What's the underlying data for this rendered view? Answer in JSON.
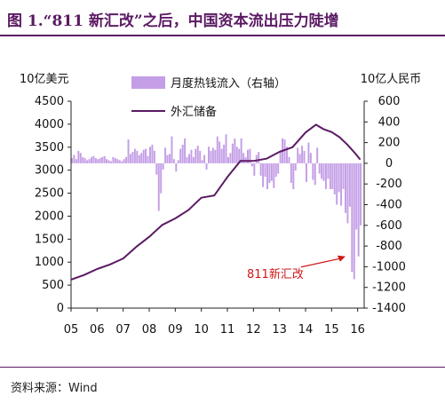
{
  "header": {
    "title": "图 1.“811 新汇改”之后，中国资本流出压力陡增"
  },
  "footer": {
    "source": "资料来源：Wind"
  },
  "colors": {
    "title": "#5b1a63",
    "bars": "#c49ee6",
    "line": "#5b1a63",
    "annotation": "#d01818"
  },
  "chart_data": {
    "type": "bar+line",
    "left_axis": {
      "unit_label": "10亿美元",
      "ylim": [
        0,
        4500
      ],
      "ticks": [
        0,
        500,
        1000,
        1500,
        2000,
        2500,
        3000,
        3500,
        4000,
        4500
      ]
    },
    "right_axis": {
      "unit_label": "10亿人民币",
      "ylim": [
        -1400,
        600
      ],
      "ticks": [
        -1400,
        -1200,
        -1000,
        -800,
        -600,
        -400,
        -200,
        0,
        200,
        400,
        600
      ]
    },
    "x_axis": {
      "ticks": [
        "05",
        "06",
        "07",
        "08",
        "09",
        "10",
        "11",
        "12",
        "13",
        "14",
        "15",
        "16"
      ],
      "range": [
        2005.0,
        2016.25
      ]
    },
    "legend": [
      {
        "name": "月度热钱流入（右轴）",
        "type": "bar"
      },
      {
        "name": "外汇储备",
        "type": "line"
      }
    ],
    "annotation": {
      "text": "811新汇改",
      "x": 2015.6,
      "y_right": -900
    },
    "series": [
      {
        "name": "外汇储备",
        "axis": "left",
        "points": [
          [
            2005.0,
            620
          ],
          [
            2005.5,
            720
          ],
          [
            2006.0,
            850
          ],
          [
            2006.5,
            950
          ],
          [
            2007.0,
            1080
          ],
          [
            2007.5,
            1330
          ],
          [
            2008.0,
            1550
          ],
          [
            2008.5,
            1810
          ],
          [
            2009.0,
            1950
          ],
          [
            2009.5,
            2130
          ],
          [
            2010.0,
            2400
          ],
          [
            2010.5,
            2450
          ],
          [
            2011.0,
            2850
          ],
          [
            2011.5,
            3200
          ],
          [
            2012.0,
            3200
          ],
          [
            2012.5,
            3250
          ],
          [
            2013.0,
            3400
          ],
          [
            2013.5,
            3500
          ],
          [
            2014.0,
            3820
          ],
          [
            2014.4,
            3990
          ],
          [
            2014.7,
            3890
          ],
          [
            2015.0,
            3830
          ],
          [
            2015.3,
            3720
          ],
          [
            2015.6,
            3560
          ],
          [
            2015.9,
            3370
          ],
          [
            2016.1,
            3230
          ]
        ]
      },
      {
        "name": "月度热钱流入（右轴）",
        "axis": "right",
        "monthly_start": 2005.0,
        "values": [
          50,
          80,
          40,
          120,
          100,
          60,
          50,
          30,
          40,
          60,
          70,
          50,
          40,
          50,
          60,
          70,
          40,
          30,
          20,
          60,
          50,
          40,
          30,
          20,
          40,
          60,
          230,
          90,
          110,
          140,
          120,
          80,
          100,
          130,
          140,
          70,
          160,
          180,
          120,
          -110,
          -460,
          -290,
          -60,
          150,
          80,
          90,
          260,
          40,
          -80,
          30,
          140,
          180,
          240,
          60,
          90,
          130,
          60,
          140,
          170,
          120,
          30,
          80,
          -60,
          160,
          120,
          150,
          130,
          260,
          210,
          140,
          180,
          280,
          60,
          100,
          190,
          240,
          160,
          140,
          240,
          100,
          60,
          130,
          140,
          -30,
          -120,
          80,
          110,
          -120,
          -230,
          -130,
          -250,
          -190,
          -170,
          -240,
          -130,
          -100,
          120,
          240,
          230,
          160,
          60,
          -190,
          -250,
          -70,
          150,
          90,
          170,
          120,
          -180,
          200,
          100,
          -160,
          -210,
          150,
          -100,
          -150,
          -170,
          -250,
          -150,
          -250,
          -250,
          -300,
          -400,
          -280,
          -410,
          -250,
          -480,
          -580,
          -420,
          -1050,
          -1120,
          -640,
          -900,
          -600
        ]
      }
    ]
  }
}
